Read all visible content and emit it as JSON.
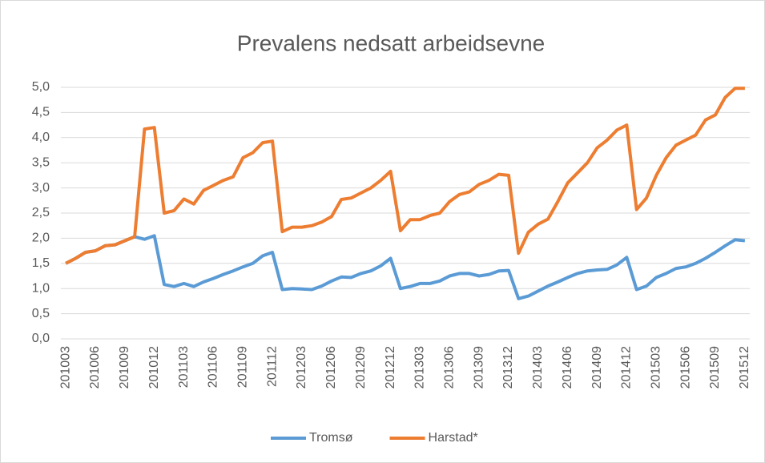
{
  "chart_data": {
    "type": "line",
    "title": "Prevalens nedsatt arbeidsevne",
    "categories": [
      "201003",
      null,
      null,
      "201006",
      null,
      null,
      "201009",
      null,
      null,
      "201012",
      null,
      null,
      "201103",
      null,
      null,
      "201106",
      null,
      null,
      "201109",
      null,
      null,
      "201112",
      null,
      null,
      "201203",
      null,
      null,
      "201206",
      null,
      null,
      "201209",
      null,
      null,
      "201212",
      null,
      null,
      "201303",
      null,
      null,
      "201306",
      null,
      null,
      "201309",
      null,
      null,
      "201312",
      null,
      null,
      "201403",
      null,
      null,
      "201406",
      null,
      null,
      "201409",
      null,
      null,
      "201412",
      null,
      null,
      "201503",
      null,
      null,
      "201506",
      null,
      null,
      "201509",
      null,
      null,
      "201512"
    ],
    "series": [
      {
        "name": "Tromsø",
        "color": "#5b9bd5",
        "values": [
          1.5,
          1.6,
          1.72,
          1.75,
          1.85,
          1.87,
          1.95,
          2.03,
          1.98,
          2.05,
          1.08,
          1.04,
          1.1,
          1.04,
          1.13,
          1.2,
          1.28,
          1.35,
          1.43,
          1.5,
          1.65,
          1.72,
          0.98,
          1.0,
          0.99,
          0.98,
          1.05,
          1.15,
          1.23,
          1.22,
          1.3,
          1.35,
          1.45,
          1.6,
          1.0,
          1.04,
          1.1,
          1.1,
          1.15,
          1.25,
          1.3,
          1.3,
          1.25,
          1.28,
          1.35,
          1.36,
          0.8,
          0.85,
          0.95,
          1.05,
          1.13,
          1.22,
          1.3,
          1.35,
          1.37,
          1.38,
          1.47,
          1.62,
          0.98,
          1.05,
          1.22,
          1.3,
          1.4,
          1.43,
          1.5,
          1.6,
          1.72,
          1.85,
          1.97,
          1.95
        ]
      },
      {
        "name": "Harstad*",
        "color": "#ed7d31",
        "values": [
          1.5,
          1.6,
          1.72,
          1.75,
          1.85,
          1.87,
          1.95,
          2.03,
          4.17,
          4.2,
          2.5,
          2.55,
          2.78,
          2.68,
          2.95,
          3.05,
          3.15,
          3.22,
          3.6,
          3.7,
          3.9,
          3.93,
          2.13,
          2.22,
          2.22,
          2.25,
          2.32,
          2.43,
          2.77,
          2.8,
          2.9,
          3.0,
          3.15,
          3.33,
          2.15,
          2.37,
          2.37,
          2.45,
          2.5,
          2.73,
          2.87,
          2.92,
          3.07,
          3.15,
          3.27,
          3.25,
          1.7,
          2.12,
          2.28,
          2.38,
          2.73,
          3.1,
          3.3,
          3.5,
          3.8,
          3.95,
          4.15,
          4.25,
          2.57,
          2.8,
          3.25,
          3.6,
          3.85,
          3.95,
          4.05,
          4.35,
          4.45,
          4.8,
          4.98,
          4.98
        ]
      }
    ],
    "ylim": [
      0,
      5
    ],
    "yticks": [
      {
        "value": 0,
        "label": "0,0"
      },
      {
        "value": 0.5,
        "label": "0,5"
      },
      {
        "value": 1,
        "label": "1,0"
      },
      {
        "value": 1.5,
        "label": "1,5"
      },
      {
        "value": 2,
        "label": "2,0"
      },
      {
        "value": 2.5,
        "label": "2,5"
      },
      {
        "value": 3,
        "label": "3,0"
      },
      {
        "value": 3.5,
        "label": "3,5"
      },
      {
        "value": 4,
        "label": "4,0"
      },
      {
        "value": 4.5,
        "label": "4,5"
      },
      {
        "value": 5,
        "label": "5,0"
      }
    ],
    "grid": true,
    "legend": "bottom"
  }
}
